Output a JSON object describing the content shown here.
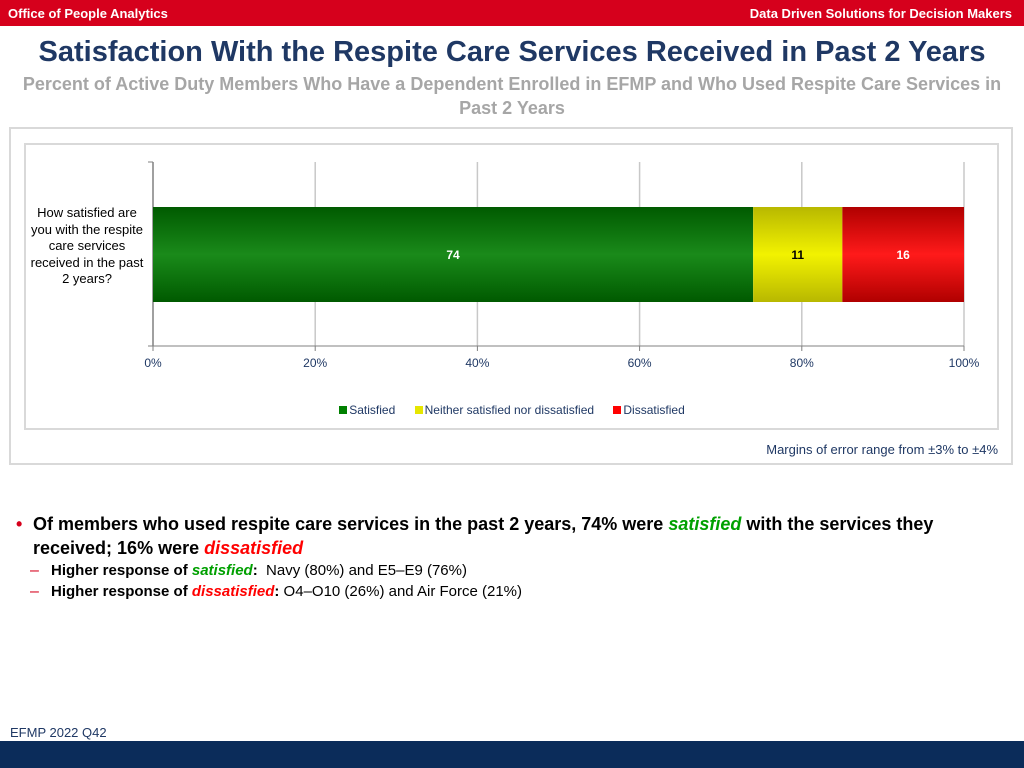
{
  "header": {
    "left": "Office of People Analytics",
    "right": "Data Driven Solutions for Decision Makers"
  },
  "title": "Satisfaction With the Respite Care Services Received in Past 2 Years",
  "subtitle": "Percent of Active Duty Members Who Have a Dependent Enrolled in EFMP and Who Used Respite Care Services in Past 2 Years",
  "chart_data": {
    "type": "bar",
    "orientation": "horizontal",
    "stacked": true,
    "categories": [
      "How satisfied are you with the respite care services received in the past 2 years?"
    ],
    "series": [
      {
        "name": "Satisfied",
        "values": [
          74
        ],
        "color": "#008000"
      },
      {
        "name": "Neither satisfied nor dissatisfied",
        "values": [
          11
        ],
        "color": "#e6e600"
      },
      {
        "name": "Dissatisfied",
        "values": [
          16
        ],
        "color": "#ff0000"
      }
    ],
    "xlim": [
      0,
      100
    ],
    "x_ticks": [
      "0%",
      "20%",
      "40%",
      "60%",
      "80%",
      "100%"
    ],
    "grid": true,
    "legend": "bottom"
  },
  "margin_note": "Margins of error range from ±3% to ±4%",
  "findings": {
    "main": {
      "prefix": "Of members who used respite care services in the past 2 years, 74% were ",
      "sat_word": "satisfied",
      "middle": " with the services they received; 16% were ",
      "dis_word": "dissatisfied"
    },
    "sub1": {
      "label": "Higher response of ",
      "word": "satisfied",
      "colon": ":",
      "text": "  Navy (80%) and E5–E9 (76%)"
    },
    "sub2": {
      "label": "Higher response of ",
      "word": "dissatisfied",
      "colon": ":",
      "text": " O4–O10 (26%) and Air Force (21%)"
    }
  },
  "footer": "EFMP 2022 Q42",
  "colors": {
    "brand_red": "#d6001c",
    "navy": "#0b2c5a",
    "title_blue": "#1f3864"
  }
}
